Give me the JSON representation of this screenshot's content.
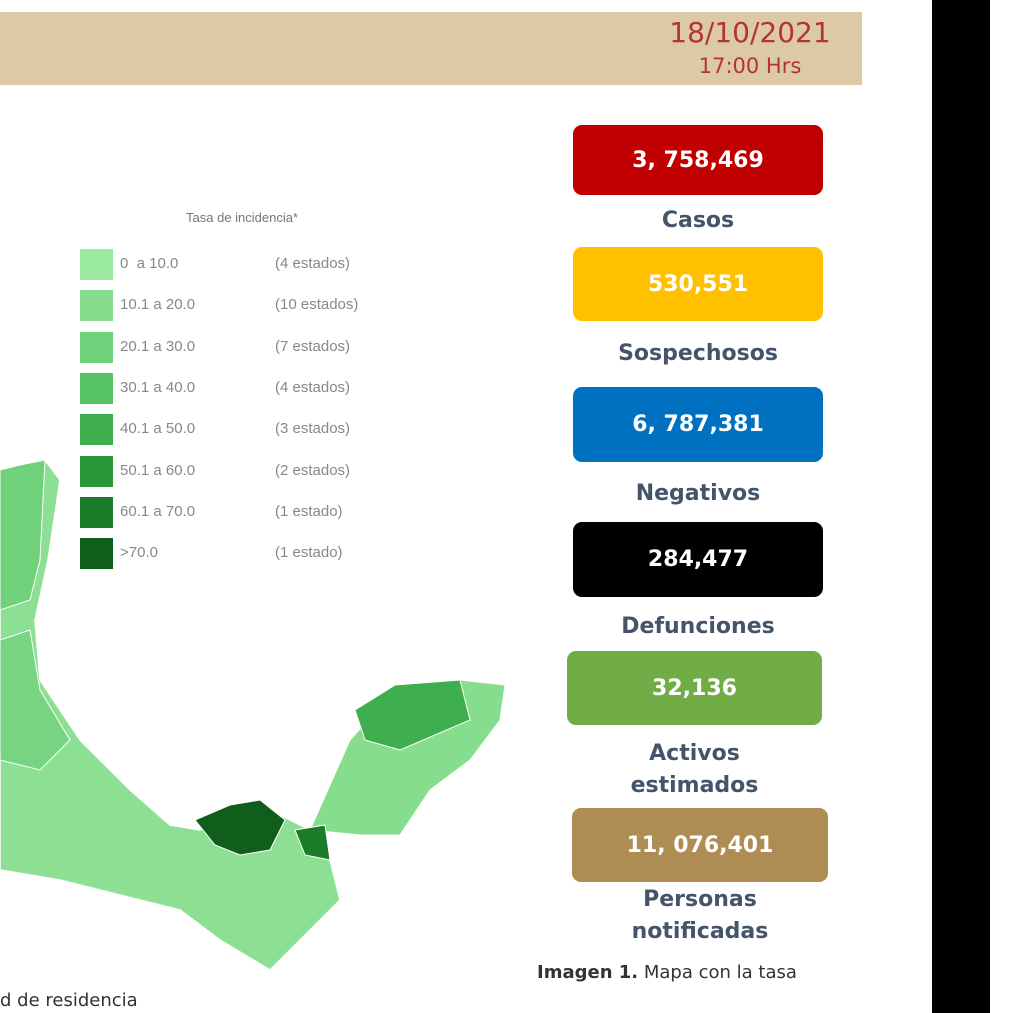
{
  "header": {
    "date": "18/10/2021",
    "time": "17:00 Hrs"
  },
  "legend": {
    "title": "Tasa de incidencia*",
    "items": [
      {
        "range": "0  a 10.0",
        "count": "(4 estados)",
        "color": "#9be8a0"
      },
      {
        "range": "10.1 a 20.0",
        "count": "(10 estados)",
        "color": "#86dd8e"
      },
      {
        "range": "20.1 a 30.0",
        "count": "(7 estados)",
        "color": "#6fd17a"
      },
      {
        "range": "30.1 a 40.0",
        "count": "(4 estados)",
        "color": "#57c263"
      },
      {
        "range": "40.1 a 50.0",
        "count": "(3 estados)",
        "color": "#3fae4e"
      },
      {
        "range": "50.1 a 60.0",
        "count": "(2 estados)",
        "color": "#2b9639"
      },
      {
        "range": "60.1 a 70.0",
        "count": "(1 estado)",
        "color": "#1a7d2a"
      },
      {
        "range": ">70.0",
        "count": "(1 estado)",
        "color": "#0f5e1c"
      }
    ]
  },
  "stats": [
    {
      "value": "3, 758,469",
      "label": "Casos",
      "color": "#c00000"
    },
    {
      "value": "530,551",
      "label": "Sospechosos",
      "color": "#ffc000"
    },
    {
      "value": "6, 787,381",
      "label": "Negativos",
      "color": "#0070c0"
    },
    {
      "value": "284,477",
      "label": "Defunciones",
      "color": "#000000"
    },
    {
      "value": "32,136",
      "label": "Activos estimados",
      "color": "#70ad47"
    },
    {
      "value": "11, 076,401",
      "label": "Personas notificadas",
      "color": "#b08c55"
    }
  ],
  "caption": {
    "bold": "Imagen 1.",
    "text": "Mapa con la tasa"
  },
  "footnote": "d de residencia"
}
